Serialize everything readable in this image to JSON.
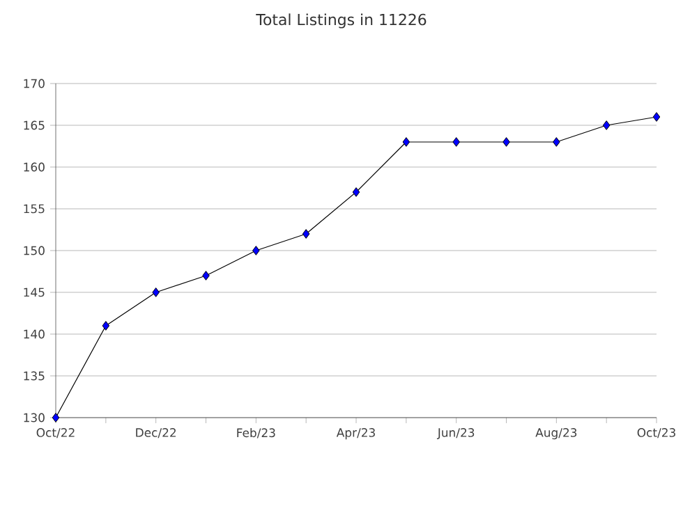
{
  "chart_data": {
    "type": "line",
    "title": "Total Listings in 11226",
    "categories": [
      "Oct/22",
      null,
      "Dec/22",
      null,
      "Feb/23",
      null,
      "Apr/23",
      null,
      "Jun/23",
      null,
      "Aug/23",
      null,
      "Oct/23"
    ],
    "series": [
      {
        "color": "#0000ff",
        "values": [
          130,
          141,
          145,
          147,
          150,
          152,
          157,
          163,
          163,
          163,
          163,
          165,
          166
        ]
      }
    ],
    "ylim": [
      130,
      170
    ],
    "yticks": [
      130,
      135,
      140,
      145,
      150,
      155,
      160,
      165,
      170
    ],
    "grid": "y",
    "marker": "diamond",
    "line_style": "solid"
  }
}
